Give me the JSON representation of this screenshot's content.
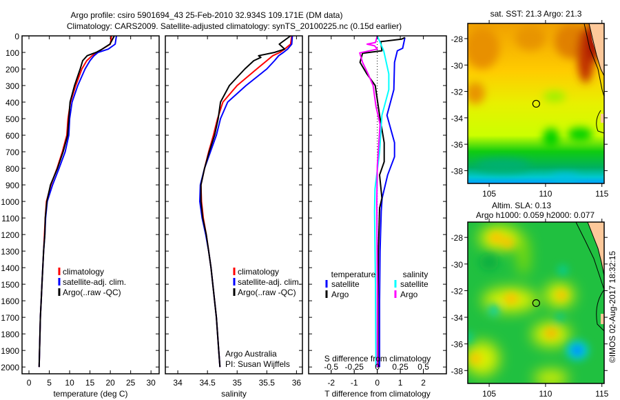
{
  "header": {
    "line1": "Argo profile: csiro 5901694_43 25-Feb-2010 32.934S 109.171E (DM data)",
    "line2": "Climatology: CARS2009. Satellite-adjusted climatology: synTS_20100225.nc (0.15d earlier)"
  },
  "stamp": "©IMOS 02-Aug-2017 18:32:15",
  "colors": {
    "climatology": "#ff0000",
    "satellite": "#0000ff",
    "argo": "#000000",
    "sal_satellite": "#00ffff",
    "sal_argo": "#ff00ff"
  },
  "chart_data": [
    {
      "type": "line",
      "xlabel": "temperature (deg C)",
      "ylabel": "depth",
      "xlim": [
        -1.7,
        32
      ],
      "ylim": [
        2041,
        0
      ],
      "xticks": [
        0,
        5,
        10,
        15,
        20,
        25,
        30
      ],
      "yticks": [
        0,
        100,
        200,
        300,
        400,
        500,
        600,
        700,
        800,
        900,
        1000,
        1100,
        1200,
        1300,
        1400,
        1500,
        1600,
        1700,
        1800,
        1900,
        2000
      ],
      "legend": [
        {
          "label": "climatology",
          "color": "#ff0000"
        },
        {
          "label": "satellite-adj. clim.",
          "color": "#0000ff"
        },
        {
          "label": "Argo(..raw -QC)",
          "color": "#000000"
        }
      ],
      "series": [
        {
          "name": "climatology",
          "color": "#ff0000",
          "depth": [
            0,
            50,
            80,
            100,
            120,
            150,
            200,
            300,
            400,
            500,
            600,
            700,
            800,
            900,
            1000,
            1100,
            1200,
            1300,
            1400,
            1500,
            1600,
            1700,
            1800,
            1900,
            2000
          ],
          "values": [
            20.3,
            20.0,
            18.0,
            16.8,
            15.5,
            14.2,
            13.0,
            11.5,
            10.2,
            9.6,
            9.3,
            8.2,
            6.9,
            5.4,
            4.3,
            4.0,
            3.8,
            3.6,
            3.4,
            3.2,
            3.0,
            2.8,
            2.7,
            2.6,
            2.5
          ]
        },
        {
          "name": "satellite-adj. clim.",
          "color": "#0000ff",
          "depth": [
            0,
            50,
            80,
            100,
            120,
            150,
            200,
            300,
            400,
            500,
            600,
            700,
            800,
            900,
            1000,
            1100,
            1200,
            1300,
            1400,
            1500,
            1600,
            1700,
            1800,
            1900,
            2000
          ],
          "values": [
            21.5,
            21.2,
            19.5,
            17.0,
            16.0,
            15.0,
            13.8,
            12.0,
            10.6,
            10.0,
            9.8,
            8.9,
            7.4,
            5.8,
            4.5,
            4.1,
            3.9,
            3.6,
            3.4,
            3.2,
            3.0,
            2.8,
            2.7,
            2.6,
            2.5
          ]
        },
        {
          "name": "Argo",
          "color": "#000000",
          "depth": [
            0,
            50,
            80,
            100,
            120,
            150,
            200,
            300,
            400,
            500,
            600,
            700,
            800,
            900,
            1000,
            1100,
            1200,
            1300,
            1400,
            1500,
            1600,
            1700,
            1800,
            1900,
            2000
          ],
          "values": [
            21.0,
            19.9,
            18.0,
            16.5,
            14.3,
            13.2,
            12.6,
            11.2,
            10.1,
            9.8,
            9.5,
            8.4,
            7.0,
            5.3,
            4.4,
            4.0,
            3.9,
            3.6,
            3.4,
            3.2,
            3.0,
            2.8,
            2.7,
            2.6,
            2.5
          ]
        }
      ]
    },
    {
      "type": "line",
      "xlabel": "salinity",
      "ylabel": "depth",
      "xlim": [
        33.79,
        36.1
      ],
      "ylim": [
        2041,
        0
      ],
      "xticks": [
        34,
        34.5,
        35,
        35.5,
        36
      ],
      "yticks": [
        0,
        100,
        200,
        300,
        400,
        500,
        600,
        700,
        800,
        900,
        1000,
        1100,
        1200,
        1300,
        1400,
        1500,
        1600,
        1700,
        1800,
        1900,
        2000
      ],
      "legend": [
        {
          "label": "climatology",
          "color": "#ff0000"
        },
        {
          "label": "satellite-adj. clim.",
          "color": "#0000ff"
        },
        {
          "label": "Argo(..raw -QC)",
          "color": "#000000"
        }
      ],
      "annotations": [
        "Argo Australia",
        "PI: Susan Wijffels"
      ],
      "series": [
        {
          "name": "climatology",
          "color": "#ff0000",
          "depth": [
            0,
            50,
            80,
            100,
            120,
            150,
            200,
            300,
            400,
            500,
            600,
            700,
            800,
            900,
            1000,
            1100,
            1200,
            1300,
            1400,
            1500,
            1600,
            1700,
            1800,
            1900,
            2000
          ],
          "values": [
            35.92,
            35.9,
            35.8,
            35.72,
            35.6,
            35.5,
            35.33,
            35.0,
            34.76,
            34.67,
            34.6,
            34.52,
            34.45,
            34.39,
            34.4,
            34.43,
            34.48,
            34.52,
            34.56,
            34.59,
            34.62,
            34.65,
            34.67,
            34.69,
            34.71
          ]
        },
        {
          "name": "satellite-adj. clim.",
          "color": "#0000ff",
          "depth": [
            0,
            50,
            80,
            100,
            120,
            150,
            200,
            300,
            400,
            500,
            600,
            700,
            800,
            900,
            1000,
            1100,
            1200,
            1300,
            1400,
            1500,
            1600,
            1700,
            1800,
            1900,
            2000
          ],
          "values": [
            35.93,
            35.92,
            35.85,
            35.78,
            35.7,
            35.63,
            35.5,
            35.15,
            34.84,
            34.72,
            34.65,
            34.55,
            34.45,
            34.38,
            34.37,
            34.41,
            34.47,
            34.52,
            34.56,
            34.59,
            34.62,
            34.65,
            34.67,
            34.69,
            34.71
          ]
        },
        {
          "name": "Argo",
          "color": "#000000",
          "depth": [
            0,
            50,
            80,
            100,
            120,
            130,
            150,
            200,
            300,
            400,
            500,
            600,
            700,
            800,
            900,
            1000,
            1100,
            1200,
            1300,
            1400,
            1500,
            1600,
            1700,
            1800,
            1900,
            2000
          ],
          "values": [
            35.9,
            35.71,
            35.8,
            35.63,
            35.36,
            35.4,
            35.28,
            35.13,
            34.87,
            34.72,
            34.68,
            34.62,
            34.53,
            34.45,
            34.39,
            34.39,
            34.42,
            34.48,
            34.52,
            34.56,
            34.59,
            34.62,
            34.65,
            34.67,
            34.69,
            34.71
          ]
        }
      ]
    },
    {
      "type": "line",
      "xlabel": "T difference from climatology",
      "xlabel2": "S difference from climatology",
      "xlim": [
        -2.98,
        3.0
      ],
      "s_scale": 0.25,
      "ylim": [
        2041,
        0
      ],
      "xticks": [
        -2,
        -1,
        0,
        1,
        2
      ],
      "sticks": [
        -0.5,
        -0.25,
        0,
        0.25,
        0.5
      ],
      "yticks": [
        0,
        100,
        200,
        300,
        400,
        500,
        600,
        700,
        800,
        900,
        1000,
        1100,
        1200,
        1300,
        1400,
        1500,
        1600,
        1700,
        1800,
        1900,
        2000
      ],
      "legend_headers": [
        "temperature",
        "salinity"
      ],
      "legend": [
        {
          "label": "satellite",
          "color": "#0000ff",
          "group": "temperature"
        },
        {
          "label": "Argo",
          "color": "#000000",
          "group": "temperature"
        },
        {
          "label": "satellite",
          "color": "#00ffff",
          "group": "salinity"
        },
        {
          "label": "Argo",
          "color": "#ff00ff",
          "group": "salinity"
        }
      ],
      "series": [
        {
          "name": "T satellite",
          "variable": "T",
          "color": "#0000ff",
          "depth": [
            10,
            75,
            90,
            160,
            325,
            480,
            645,
            730,
            840,
            980,
            1060,
            1300,
            1600,
            2000
          ],
          "values": [
            1.2,
            1.1,
            0.87,
            0.75,
            0.72,
            0.42,
            0.75,
            0.75,
            0.45,
            0.21,
            0.17,
            0.12,
            0.1,
            0.1
          ]
        },
        {
          "name": "T Argo",
          "variable": "T",
          "color": "#000000",
          "depth": [
            10,
            20,
            35,
            90,
            105,
            160,
            230,
            300,
            480,
            645,
            760,
            840,
            980,
            1040,
            1300,
            1600,
            2000
          ],
          "values": [
            1.2,
            1.05,
            0.15,
            0.2,
            -0.64,
            -0.75,
            -0.45,
            -0.09,
            0.1,
            0.3,
            0.3,
            0.1,
            0.2,
            0.1,
            0.05,
            0.03,
            0.03
          ]
        },
        {
          "name": "S satellite",
          "variable": "S",
          "color": "#00ffff",
          "depth": [
            0,
            90,
            230,
            325,
            480,
            700,
            925,
            1060,
            1500,
            2000
          ],
          "values": [
            0,
            0.07,
            0.125,
            0.125,
            0.05,
            0.025,
            -0.025,
            -0.03,
            -0.02,
            -0.015
          ]
        },
        {
          "name": "S Argo",
          "variable": "S",
          "color": "#ff00ff",
          "depth": [
            0,
            40,
            50,
            60,
            80,
            103,
            160,
            230,
            300,
            425,
            535,
            785,
            1000,
            1500,
            2000
          ],
          "values": [
            0,
            -0.02,
            -0.11,
            -0.03,
            0,
            -0.19,
            -0.16,
            -0.1,
            -0.045,
            -0.015,
            0.03,
            0,
            -0.005,
            0,
            0
          ]
        }
      ]
    },
    {
      "type": "heatmap",
      "title": "sat. SST: 21.3 Argo: 21.3",
      "xlim": [
        103.1,
        115.2
      ],
      "ylim": [
        -38.97,
        -26.85
      ],
      "xticks": [
        105,
        110,
        115
      ],
      "yticks": [
        -28,
        -30,
        -32,
        -34,
        -36,
        -38
      ],
      "marker": {
        "lon": 109.171,
        "lat": -32.934
      }
    },
    {
      "type": "heatmap",
      "title": "Altim. SLA: 0.13",
      "subtitle": "Argo h1000: 0.059 h2000: 0.077",
      "xlim": [
        103.1,
        115.2
      ],
      "ylim": [
        -38.97,
        -26.85
      ],
      "xticks": [
        105,
        110,
        115
      ],
      "yticks": [
        -28,
        -30,
        -32,
        -34,
        -36,
        -38
      ],
      "marker": {
        "lon": 109.171,
        "lat": -32.934
      }
    }
  ]
}
